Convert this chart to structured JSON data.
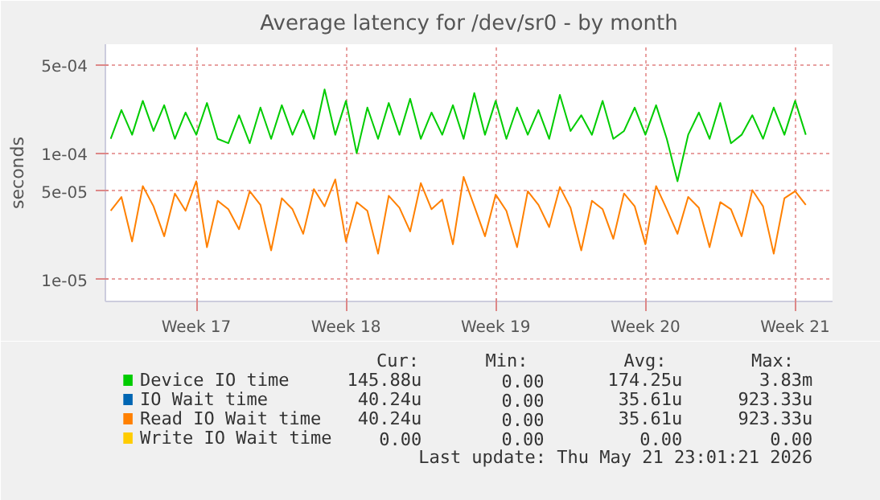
{
  "chart_data": {
    "type": "line",
    "title": "Average latency for /dev/sr0 - by month",
    "ylabel": "seconds",
    "log": "y",
    "grid": true,
    "legend": "bottom",
    "marker": "none",
    "line_style": "solid",
    "ylim": [
      6.7e-06,
      0.00073
    ],
    "yticks": [
      {
        "value": 1e-05,
        "label": "1e-05"
      },
      {
        "value": 5e-05,
        "label": "5e-05"
      },
      {
        "value": 0.0001,
        "label": "1e-04"
      },
      {
        "value": 0.0005,
        "label": "5e-04"
      }
    ],
    "categories": [
      null,
      null,
      null,
      null,
      null,
      null,
      null,
      null,
      "Week 17",
      null,
      null,
      null,
      null,
      null,
      null,
      null,
      null,
      null,
      null,
      null,
      null,
      null,
      "Week 18",
      null,
      null,
      null,
      null,
      null,
      null,
      null,
      null,
      null,
      null,
      null,
      null,
      null,
      "Week 19",
      null,
      null,
      null,
      null,
      null,
      null,
      null,
      null,
      null,
      null,
      null,
      null,
      null,
      "Week 20",
      null,
      null,
      null,
      null,
      null,
      null,
      null,
      null,
      null,
      null,
      null,
      null,
      null,
      "Week 21",
      null
    ],
    "series": [
      {
        "name": "Device IO time",
        "color": "#00cc00",
        "values": [
          0.00013,
          0.00022,
          0.00014,
          0.00026,
          0.00015,
          0.00024,
          0.00013,
          0.00021,
          0.00014,
          0.00025,
          0.00013,
          0.00012,
          0.0002,
          0.00012,
          0.00023,
          0.00013,
          0.00024,
          0.00014,
          0.00022,
          0.00013,
          0.00032,
          0.00014,
          0.00026,
          0.0001,
          0.00023,
          0.00013,
          0.00025,
          0.00014,
          0.00027,
          0.00013,
          0.00021,
          0.00014,
          0.00024,
          0.00013,
          0.0003,
          0.00014,
          0.00026,
          0.00013,
          0.00023,
          0.00014,
          0.00022,
          0.00013,
          0.00029,
          0.00015,
          0.0002,
          0.00014,
          0.00026,
          0.00013,
          0.00015,
          0.00023,
          0.00014,
          0.00024,
          0.00013,
          6e-05,
          0.00014,
          0.00021,
          0.00013,
          0.00025,
          0.00012,
          0.00014,
          0.0002,
          0.00013,
          0.00023,
          0.00014,
          0.00026,
          0.00014
        ]
      },
      {
        "name": "IO Wait time",
        "color": "#0066b3",
        "values": [
          null,
          null,
          null,
          null,
          null,
          null,
          null,
          null,
          null,
          null,
          null,
          null,
          null,
          null,
          null,
          null,
          null,
          null,
          null,
          null,
          null,
          null,
          null,
          null,
          null,
          null,
          null,
          null,
          null,
          null,
          null,
          null,
          null,
          null,
          null,
          null,
          null,
          null,
          null,
          null,
          null,
          null,
          null,
          null,
          null,
          null,
          null,
          null,
          null,
          null,
          null,
          null,
          null,
          null,
          null,
          null,
          null,
          null,
          null,
          null,
          null,
          null,
          null,
          null,
          null,
          null
        ]
      },
      {
        "name": "Read IO Wait time",
        "color": "#ff8000",
        "values": [
          3.5e-05,
          4.5e-05,
          2e-05,
          5.5e-05,
          3.8e-05,
          2.2e-05,
          4.8e-05,
          3.5e-05,
          6e-05,
          1.8e-05,
          4.2e-05,
          3.6e-05,
          2.5e-05,
          5e-05,
          3.9e-05,
          1.7e-05,
          4.4e-05,
          3.6e-05,
          2.3e-05,
          5.2e-05,
          3.8e-05,
          6.2e-05,
          2e-05,
          4.1e-05,
          3.5e-05,
          1.6e-05,
          4.6e-05,
          3.7e-05,
          2.4e-05,
          5.8e-05,
          3.6e-05,
          4.3e-05,
          1.9e-05,
          6.5e-05,
          3.8e-05,
          2.2e-05,
          4.7e-05,
          3.5e-05,
          1.8e-05,
          5e-05,
          3.9e-05,
          2.6e-05,
          5.4e-05,
          3.7e-05,
          1.7e-05,
          4.2e-05,
          3.6e-05,
          2.1e-05,
          4.8e-05,
          3.8e-05,
          1.9e-05,
          5.5e-05,
          3.6e-05,
          2.3e-05,
          4.5e-05,
          3.7e-05,
          1.8e-05,
          4.1e-05,
          3.6e-05,
          2.2e-05,
          5.1e-05,
          3.8e-05,
          1.6e-05,
          4.4e-05,
          5e-05,
          3.9e-05
        ]
      },
      {
        "name": "Write IO Wait time",
        "color": "#ffcc00",
        "values": [
          null,
          null,
          null,
          null,
          null,
          null,
          null,
          null,
          null,
          null,
          null,
          null,
          null,
          null,
          null,
          null,
          null,
          null,
          null,
          null,
          null,
          null,
          null,
          null,
          null,
          null,
          null,
          null,
          null,
          null,
          null,
          null,
          null,
          null,
          null,
          null,
          null,
          null,
          null,
          null,
          null,
          null,
          null,
          null,
          null,
          null,
          null,
          null,
          null,
          null,
          null,
          null,
          null,
          null,
          null,
          null,
          null,
          null,
          null,
          null,
          null,
          null,
          null,
          null,
          null,
          null
        ]
      }
    ],
    "annotations": [
      "Cur:",
      "Min:",
      "Avg:",
      "Max:",
      "145.88u",
      "0.00",
      "174.25u",
      "3.83m",
      "40.24u",
      "0.00",
      "35.61u",
      "923.33u",
      "40.24u",
      "0.00",
      "35.61u",
      "923.33u",
      "0.00",
      "0.00",
      "0.00",
      "0.00",
      "Last update: Thu May 21 23:01:21 2026"
    ]
  }
}
